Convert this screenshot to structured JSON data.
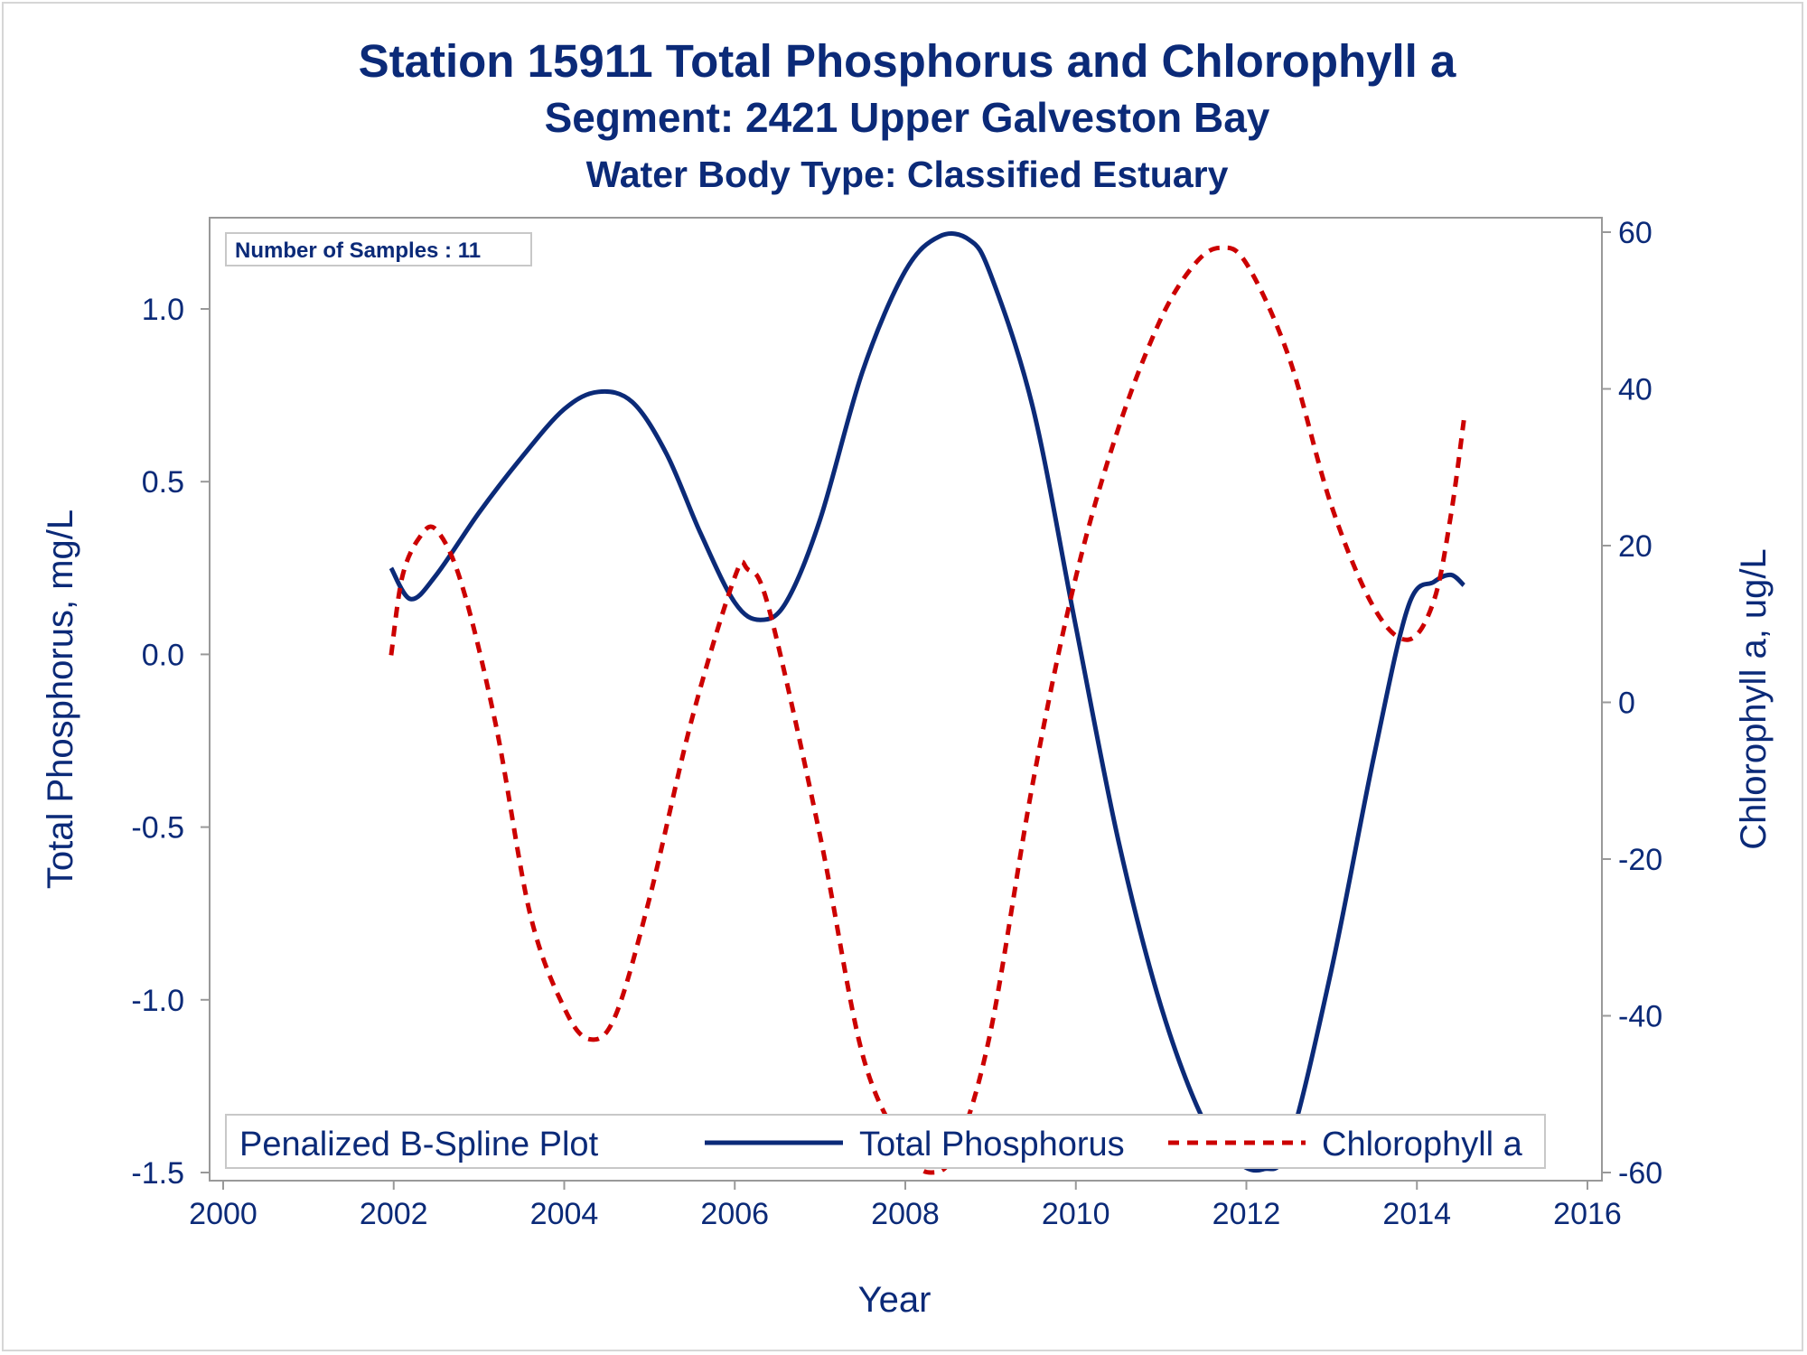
{
  "title": {
    "line1": "Station 15911  Total Phosphorus and Chlorophyll a",
    "line2": "Segment: 2421  Upper Galveston Bay",
    "line3": "Water Body Type: Classified Estuary"
  },
  "inset_label": "Number of Samples : 11",
  "legend": {
    "title": "Penalized B-Spline Plot",
    "items": [
      "Total Phosphorus",
      "Chlorophyll a"
    ]
  },
  "colors": {
    "phosphorus": "#0b2a78",
    "chlorophyll": "#cc0000",
    "text": "#0b2a78",
    "axis": "#999999"
  },
  "chart_data": {
    "type": "line",
    "title": "Station 15911  Total Phosphorus and Chlorophyll a",
    "xlabel": "Year",
    "ylabel_left": "Total Phosphorus, mg/L",
    "ylabel_right": "Chlorophyll a, ug/L",
    "xlim": [
      2000,
      2016
    ],
    "ylim_left": [
      -1.5,
      1.25
    ],
    "ylim_right": [
      -60,
      60
    ],
    "x_ticks": [
      2000,
      2002,
      2004,
      2006,
      2008,
      2010,
      2012,
      2014,
      2016
    ],
    "y_left_ticks": [
      "-1.5",
      "-1.0",
      "-0.5",
      "0.0",
      "0.5",
      "1.0"
    ],
    "y_right_ticks": [
      "-60",
      "-40",
      "-20",
      "0",
      "20",
      "40",
      "60"
    ],
    "grid": false,
    "legend_position": "bottom",
    "series": [
      {
        "name": "Total Phosphorus",
        "axis": "left",
        "style": "solid",
        "x": [
          2001.97,
          2002.2,
          2002.5,
          2003.0,
          2003.5,
          2004.0,
          2004.4,
          2004.8,
          2005.2,
          2005.6,
          2006.0,
          2006.3,
          2006.6,
          2007.0,
          2007.5,
          2008.0,
          2008.4,
          2008.75,
          2009.0,
          2009.5,
          2010.0,
          2010.5,
          2011.0,
          2011.5,
          2011.9,
          2012.2,
          2012.5,
          2013.0,
          2013.5,
          2013.9,
          2014.2,
          2014.4,
          2014.55
        ],
        "y": [
          0.25,
          0.16,
          0.23,
          0.41,
          0.57,
          0.71,
          0.76,
          0.73,
          0.58,
          0.35,
          0.15,
          0.1,
          0.15,
          0.39,
          0.82,
          1.11,
          1.21,
          1.2,
          1.1,
          0.71,
          0.08,
          -0.54,
          -1.02,
          -1.35,
          -1.47,
          -1.49,
          -1.42,
          -0.91,
          -0.29,
          0.14,
          0.21,
          0.23,
          0.2
        ]
      },
      {
        "name": "Chlorophyll a",
        "axis": "right",
        "style": "dashed",
        "x": [
          2001.97,
          2002.1,
          2002.3,
          2002.5,
          2002.8,
          2003.2,
          2003.6,
          2004.0,
          2004.3,
          2004.6,
          2005.0,
          2005.5,
          2006.0,
          2006.15,
          2006.4,
          2007.0,
          2007.5,
          2008.0,
          2008.3,
          2008.6,
          2009.0,
          2009.5,
          2010.0,
          2010.5,
          2011.0,
          2011.4,
          2011.7,
          2012.0,
          2012.5,
          2013.0,
          2013.5,
          2013.9,
          2014.2,
          2014.4,
          2014.55
        ],
        "y": [
          6,
          16,
          21,
          22,
          15,
          -3,
          -27,
          -39,
          -43,
          -40,
          -25,
          -2,
          16,
          17,
          12,
          -17,
          -45,
          -57,
          -60,
          -57,
          -42,
          -10,
          16,
          35,
          49,
          56,
          58,
          56,
          44,
          25,
          12,
          8,
          13,
          24,
          36
        ]
      }
    ]
  }
}
